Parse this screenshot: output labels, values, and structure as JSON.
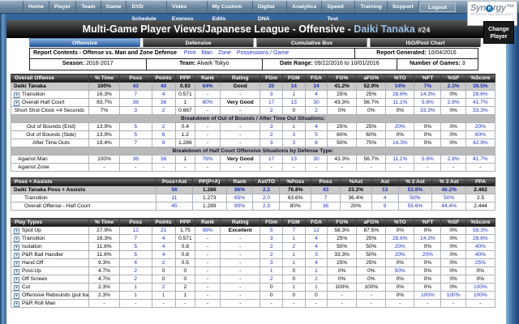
{
  "colors": {
    "link": "#2233bb",
    "active_tab": "#1d4f94",
    "frame": "#35659b",
    "player_name": "#9cc2e8"
  },
  "icons": {
    "scroll_up": "∧",
    "expand": "+"
  },
  "nav": {
    "items": [
      "Home",
      "Player",
      "Team",
      "Game",
      "DVD Schedule",
      "Video Express",
      "My Custom Edits",
      "Digital DNA",
      "Analytics",
      "Speed Test",
      "Training",
      "Support"
    ],
    "logout": "Logout",
    "brand_name": "Synergy",
    "brand_tagline": "SPORTS TECHNOLOGY"
  },
  "title": {
    "main": "Multi-Game Player Views/Japanese League - Offensive -",
    "player": "Daiki Tanaka",
    "number": "#24",
    "change_player": [
      "Change",
      "Player"
    ]
  },
  "tabs": [
    {
      "label": "Offensive",
      "active": true
    },
    {
      "label": "Defensive",
      "active": false
    },
    {
      "label": "Cumulative Box",
      "active": false
    },
    {
      "label": "ISO/Post Chart",
      "active": false
    }
  ],
  "report": {
    "contents_label": "Report Contents - Offense vs. Man and Zone Defense",
    "links": [
      "Print",
      "Man",
      "Zone",
      "Possessions / Game"
    ],
    "generated_label": "Report Generated:",
    "generated_value": "10/04/2016",
    "season_label": "Season:",
    "season": "2016-2017",
    "team_label": "Team:",
    "team": "Alvark Tokyo",
    "range_label": "Date Range:",
    "range": "09/22/2016 to 10/01/2016",
    "games_label": "Number of Games:",
    "games": "3"
  },
  "tables": [
    {
      "id": "overall",
      "title": "Overall Offense",
      "columns": [
        "% Time",
        "Poss",
        "Points",
        "PPP",
        "Rank",
        "Rating",
        "FGm",
        "FGM",
        "FGA",
        "FG%",
        "aFG%",
        "%TO",
        "%FT",
        "%SF",
        "%Score"
      ],
      "link_cols": [
        1,
        2,
        4,
        6,
        7,
        8,
        11,
        12,
        13,
        14
      ],
      "rows": [
        {
          "name": "Daiki Tanaka",
          "style": "summary",
          "cells": [
            "100%",
            "43",
            "40",
            "0.93",
            "64%",
            "Good",
            "20",
            "14",
            "34",
            "41.2%",
            "52.9%",
            "14%",
            "7%",
            "2.3%",
            "39.5%"
          ]
        },
        {
          "name": "Transition",
          "style": "expand",
          "cells": [
            "16.3%",
            "7",
            "4",
            "0.571",
            "-",
            "-",
            "3",
            "1",
            "4",
            "25%",
            "25%",
            "28.6%",
            "14.3%",
            "0%",
            "28.6%"
          ]
        },
        {
          "name": "Overall Half Court",
          "style": "expand",
          "cells": [
            "83.7%",
            "36",
            "36",
            "1",
            "80%",
            "Very Good",
            "17",
            "13",
            "30",
            "43.3%",
            "56.7%",
            "11.1%",
            "5.6%",
            "2.8%",
            "41.7%"
          ]
        },
        {
          "name": "Short Shot Clock <4 Seconds",
          "style": "right",
          "cells": [
            "7%",
            "3",
            "2",
            "0.667",
            "-",
            "-",
            "2",
            "0",
            "2",
            "0%",
            "0%",
            "0%",
            "33.3%",
            "0%",
            "33.3%"
          ]
        },
        {
          "section": "Breakdown of Out of Bounds / After Time Out Situations:"
        },
        {
          "name": "Out of Bounds (End)",
          "style": "center",
          "cells": [
            "13.9%",
            "5",
            "2",
            "0.4",
            "-",
            "-",
            "3",
            "1",
            "4",
            "25%",
            "25%",
            "20%",
            "0%",
            "0%",
            "20%"
          ]
        },
        {
          "name": "Out of Bounds (Side)",
          "style": "center",
          "cells": [
            "13.9%",
            "5",
            "6",
            "1.2",
            "-",
            "-",
            "2",
            "3",
            "5",
            "60%",
            "60%",
            "0%",
            "0%",
            "0%",
            "60%"
          ]
        },
        {
          "name": "After Time Outs",
          "style": "center",
          "cells": [
            "19.4%",
            "7",
            "9",
            "1.286",
            "-",
            "-",
            "3",
            "3",
            "6",
            "50%",
            "75%",
            "14.3%",
            "0%",
            "0%",
            "42.9%"
          ]
        },
        {
          "section": "Breakdown of Half Court Offensive Situations by Defense Type:"
        },
        {
          "name": "Against Man",
          "style": "left2",
          "cells": [
            "100%",
            "36",
            "36",
            "1",
            "78%",
            "Very Good",
            "17",
            "13",
            "30",
            "43.3%",
            "56.7%",
            "11.1%",
            "5.6%",
            "2.8%",
            "41.7%"
          ]
        },
        {
          "name": "Against Zone",
          "style": "left2",
          "cells": [
            "-",
            "-",
            "-",
            "-",
            "-",
            "-",
            "-",
            "-",
            "-",
            "-",
            "-",
            "-",
            "-",
            "-",
            "-"
          ]
        }
      ]
    },
    {
      "id": "poss-assists",
      "title": "Poss + Assists",
      "columns": [
        "Poss+Ast",
        "PP(P+A)",
        "Rank",
        "Ast/TO",
        "%Poss",
        "Poss",
        "%Ast",
        "Ast",
        "% 2 Ast",
        "% 3 Ast",
        "PPA"
      ],
      "link_cols": [
        0,
        2,
        3,
        5,
        7,
        8,
        9
      ],
      "rows": [
        {
          "name": "Daiki Tanaka Poss + Assists",
          "style": "summary",
          "cells": [
            "56",
            "1.286",
            "86%",
            "2.2",
            "76.8%",
            "43",
            "23.2%",
            "13",
            "53.8%",
            "46.2%",
            "2.462"
          ]
        },
        {
          "name": "Transition",
          "style": "indent",
          "cells": [
            "11",
            "1.273",
            "65%",
            "2.0",
            "63.6%",
            "7",
            "36.4%",
            "4",
            "50%",
            "50%",
            "2.5"
          ]
        },
        {
          "name": "Overall Offense - Half Court",
          "style": "indent",
          "cells": [
            "45",
            "1.289",
            "80%",
            "2.3",
            "80%",
            "36",
            "20%",
            "9",
            "55.6%",
            "44.4%",
            "2.444"
          ]
        }
      ]
    },
    {
      "id": "play-types",
      "title": "Play Types",
      "columns": [
        "% Time",
        "Poss",
        "Points",
        "PPP",
        "Rank",
        "Rating",
        "FGm",
        "FGM",
        "FGA",
        "FG%",
        "aFG%",
        "%TO",
        "%FT",
        "%SF",
        "%Score"
      ],
      "link_cols": [
        1,
        2,
        4,
        6,
        7,
        8,
        11,
        12,
        13,
        14
      ],
      "rows": [
        {
          "name": "Spot Up",
          "style": "expand",
          "cells": [
            "27.9%",
            "12",
            "21",
            "1.75",
            "98%",
            "Excellent",
            "5",
            "7",
            "12",
            "58.3%",
            "87.5%",
            "0%",
            "0%",
            "0%",
            "58.3%"
          ]
        },
        {
          "name": "Transition",
          "style": "expand",
          "cells": [
            "16.3%",
            "7",
            "4",
            "0.571",
            "-",
            "-",
            "3",
            "1",
            "4",
            "25%",
            "25%",
            "28.6%",
            "14.3%",
            "0%",
            "28.6%"
          ]
        },
        {
          "name": "Isolation",
          "style": "expand",
          "cells": [
            "11.6%",
            "5",
            "4",
            "0.8",
            "-",
            "-",
            "2",
            "2",
            "4",
            "50%",
            "50%",
            "20%",
            "0%",
            "0%",
            "40%"
          ]
        },
        {
          "name": "P&R Ball Handler",
          "style": "expand",
          "cells": [
            "11.6%",
            "5",
            "4",
            "0.8",
            "-",
            "-",
            "2",
            "1",
            "3",
            "33.3%",
            "50%",
            "20%",
            "20%",
            "0%",
            "40%"
          ]
        },
        {
          "name": "Hand Off",
          "style": "expand",
          "cells": [
            "9.3%",
            "4",
            "2",
            "0.5",
            "-",
            "-",
            "3",
            "1",
            "4",
            "25%",
            "25%",
            "0%",
            "0%",
            "0%",
            "25%"
          ]
        },
        {
          "name": "Post-Up",
          "style": "expand",
          "cells": [
            "4.7%",
            "2",
            "0",
            "0",
            "-",
            "-",
            "1",
            "0",
            "1",
            "0%",
            "0%",
            "50%",
            "0%",
            "0%",
            "0%"
          ]
        },
        {
          "name": "Off Screen",
          "style": "expand",
          "cells": [
            "4.7%",
            "2",
            "0",
            "0",
            "-",
            "-",
            "2",
            "0",
            "2",
            "0%",
            "0%",
            "0%",
            "0%",
            "0%",
            "0%"
          ]
        },
        {
          "name": "Cut",
          "style": "expand",
          "cells": [
            "2.3%",
            "1",
            "2",
            "2",
            "-",
            "-",
            "0",
            "1",
            "1",
            "100%",
            "100%",
            "0%",
            "0%",
            "0%",
            "100%"
          ]
        },
        {
          "name": "Offensive Rebounds (put backs)",
          "style": "expand",
          "cells": [
            "2.3%",
            "1",
            "1",
            "1",
            "-",
            "-",
            "0",
            "0",
            "0",
            "-",
            "-",
            "0%",
            "100%",
            "100%",
            "100%"
          ]
        },
        {
          "name": "P&R Roll Man",
          "style": "expand",
          "cells": [
            "-",
            "-",
            "-",
            "-",
            "-",
            "-",
            "-",
            "-",
            "-",
            "-",
            "-",
            "-",
            "-",
            "-",
            "-"
          ]
        }
      ]
    }
  ]
}
